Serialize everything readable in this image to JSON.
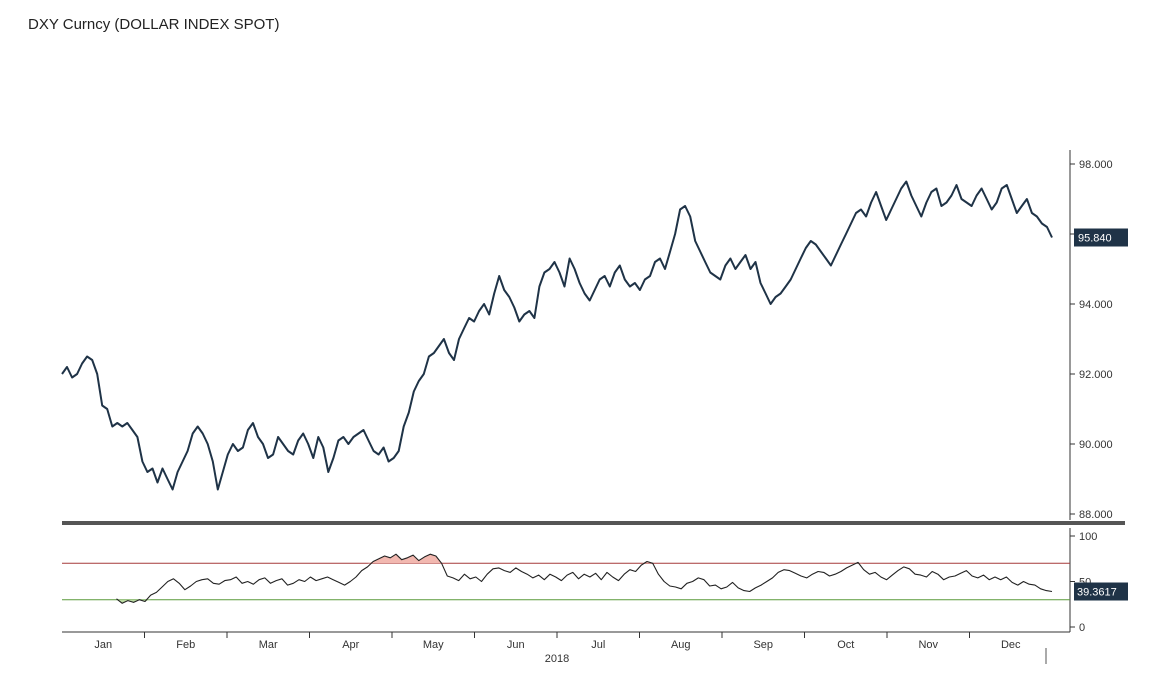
{
  "title": "DXY Curncy (DOLLAR INDEX SPOT)",
  "colors": {
    "price_line": "#1f3347",
    "rsi_line": "#222222",
    "overbought_line": "#a63a3a",
    "oversold_line": "#5a9a3a",
    "overbought_fill": "#f2b8b0",
    "oversold_fill": "#b9d9a0",
    "badge_bg": "#1f3347",
    "divider": "#555555"
  },
  "chart_data": [
    {
      "type": "line",
      "panel": "price",
      "ylim": [
        87.7,
        98.4
      ],
      "yticks": [
        98.0,
        96.0,
        94.0,
        92.0,
        90.0,
        88.0
      ],
      "ytick_labels": [
        "98.000",
        "96.000",
        "94.000",
        "92.000",
        "90.000",
        "88.000"
      ],
      "last_value_label": "95.840",
      "series": [
        {
          "values": [
            92.0,
            92.2,
            91.9,
            92.0,
            92.3,
            92.5,
            92.4,
            92.0,
            91.1,
            91.0,
            90.5,
            90.6,
            90.5,
            90.6,
            90.4,
            90.2,
            89.5,
            89.2,
            89.3,
            88.9,
            89.3,
            89.0,
            88.7,
            89.2,
            89.5,
            89.8,
            90.3,
            90.5,
            90.3,
            90.0,
            89.5,
            88.7,
            89.2,
            89.7,
            90.0,
            89.8,
            89.9,
            90.4,
            90.6,
            90.2,
            90.0,
            89.6,
            89.7,
            90.2,
            90.0,
            89.8,
            89.7,
            90.1,
            90.3,
            90.0,
            89.6,
            90.2,
            89.9,
            89.2,
            89.6,
            90.1,
            90.2,
            90.0,
            90.2,
            90.3,
            90.4,
            90.1,
            89.8,
            89.7,
            89.9,
            89.5,
            89.6,
            89.8,
            90.5,
            90.9,
            91.5,
            91.8,
            92.0,
            92.5,
            92.6,
            92.8,
            93.0,
            92.6,
            92.4,
            93.0,
            93.3,
            93.6,
            93.5,
            93.8,
            94.0,
            93.7,
            94.3,
            94.8,
            94.4,
            94.2,
            93.9,
            93.5,
            93.7,
            93.8,
            93.6,
            94.5,
            94.9,
            95.0,
            95.2,
            94.9,
            94.5,
            95.3,
            95.0,
            94.6,
            94.3,
            94.1,
            94.4,
            94.7,
            94.8,
            94.5,
            94.9,
            95.1,
            94.7,
            94.5,
            94.6,
            94.4,
            94.7,
            94.8,
            95.2,
            95.3,
            95.0,
            95.5,
            96.0,
            96.7,
            96.8,
            96.5,
            95.8,
            95.5,
            95.2,
            94.9,
            94.8,
            94.7,
            95.1,
            95.3,
            95.0,
            95.2,
            95.4,
            95.0,
            95.2,
            94.6,
            94.3,
            94.0,
            94.2,
            94.3,
            94.5,
            94.7,
            95.0,
            95.3,
            95.6,
            95.8,
            95.7,
            95.5,
            95.3,
            95.1,
            95.4,
            95.7,
            96.0,
            96.3,
            96.6,
            96.7,
            96.5,
            96.9,
            97.2,
            96.8,
            96.4,
            96.7,
            97.0,
            97.3,
            97.5,
            97.1,
            96.8,
            96.5,
            96.9,
            97.2,
            97.3,
            96.8,
            96.9,
            97.1,
            97.4,
            97.0,
            96.9,
            96.8,
            97.1,
            97.3,
            97.0,
            96.7,
            96.9,
            97.3,
            97.4,
            97.0,
            96.6,
            96.8,
            97.0,
            96.6,
            96.5,
            96.3,
            96.2,
            95.9
          ]
        }
      ]
    },
    {
      "type": "line",
      "panel": "rsi",
      "ylim": [
        0,
        100
      ],
      "yticks": [
        100,
        50,
        0
      ],
      "ytick_labels": [
        "100",
        "50",
        "0"
      ],
      "overbought": 70,
      "oversold": 30,
      "last_value_label": "39.3617",
      "series": [
        {
          "values": [
            31,
            26,
            29,
            27,
            30,
            28,
            35,
            38,
            44,
            50,
            53,
            48,
            41,
            45,
            50,
            52,
            53,
            48,
            47,
            51,
            52,
            55,
            48,
            50,
            47,
            52,
            54,
            48,
            51,
            53,
            46,
            48,
            52,
            50,
            55,
            51,
            53,
            55,
            52,
            49,
            46,
            50,
            55,
            62,
            66,
            72,
            75,
            78,
            76,
            80,
            74,
            76,
            79,
            73,
            77,
            80,
            78,
            70,
            56,
            54,
            51,
            58,
            53,
            55,
            50,
            58,
            64,
            65,
            62,
            60,
            65,
            61,
            58,
            54,
            57,
            52,
            58,
            55,
            51,
            57,
            60,
            53,
            58,
            55,
            59,
            52,
            60,
            55,
            51,
            58,
            63,
            61,
            68,
            72,
            70,
            58,
            50,
            45,
            44,
            42,
            48,
            50,
            54,
            52,
            45,
            46,
            42,
            44,
            49,
            43,
            40,
            39,
            43,
            46,
            50,
            54,
            60,
            63,
            62,
            59,
            56,
            54,
            58,
            61,
            60,
            56,
            58,
            61,
            65,
            68,
            71,
            63,
            58,
            60,
            55,
            52,
            57,
            62,
            66,
            64,
            58,
            57,
            55,
            61,
            58,
            52,
            55,
            56,
            59,
            62,
            56,
            54,
            57,
            52,
            55,
            52,
            55,
            49,
            46,
            50,
            47,
            46,
            42,
            40,
            39
          ]
        }
      ],
      "x_axis": {
        "months": [
          "Jan",
          "Feb",
          "Mar",
          "Apr",
          "May",
          "Jun",
          "Jul",
          "Aug",
          "Sep",
          "Oct",
          "Nov",
          "Dec"
        ],
        "year_label": "2018"
      }
    }
  ]
}
